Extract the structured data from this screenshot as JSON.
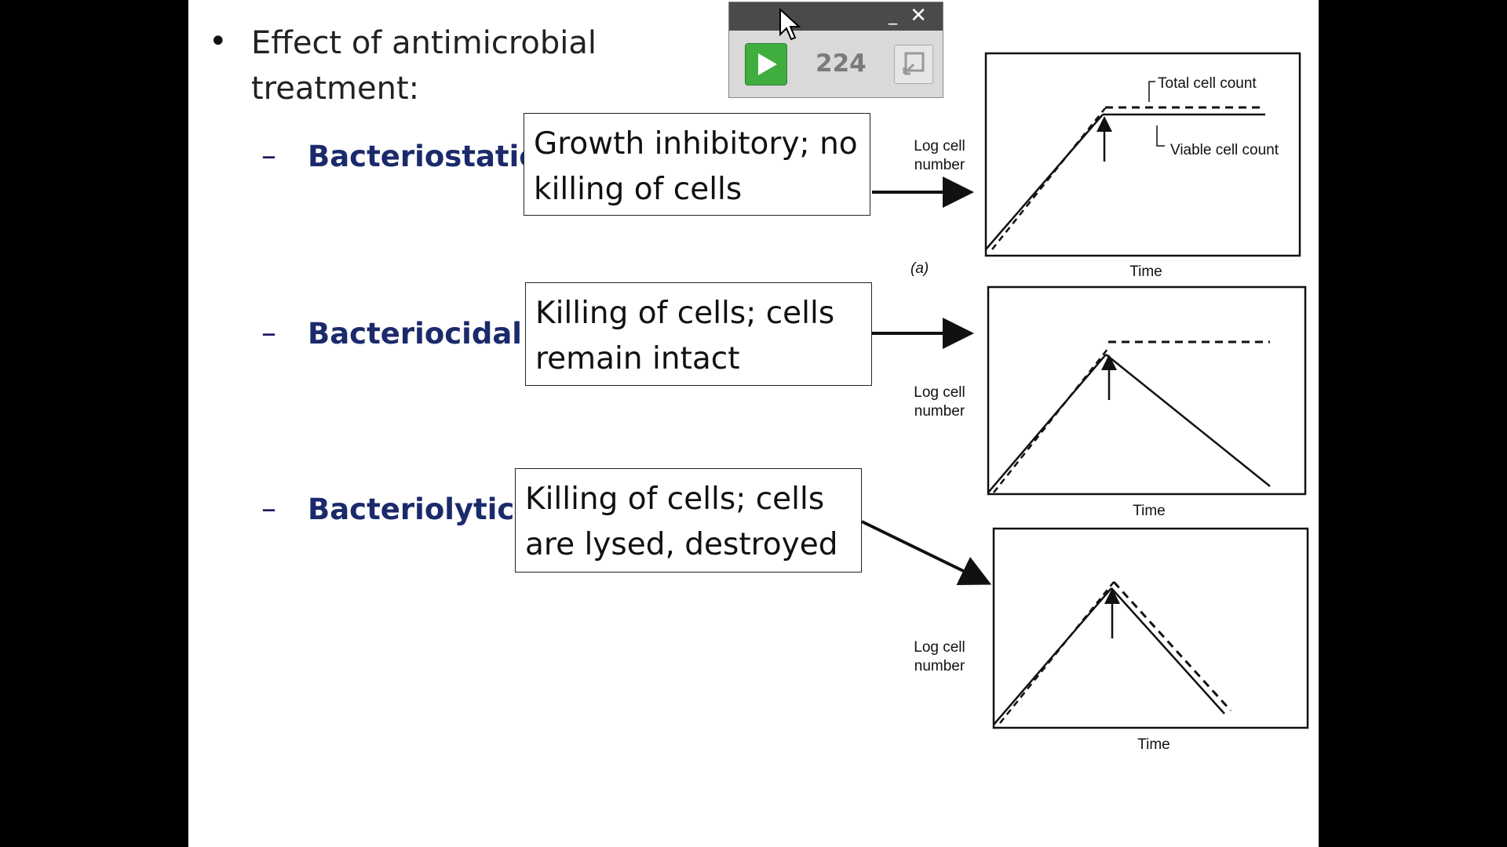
{
  "slide": {
    "bullet_symbol": "•",
    "title": "Effect of antimicrobial treatment:",
    "items": [
      {
        "dash": "–",
        "term": "Bacteriostatic",
        "description": "Growth inhibitory; no killing of cells"
      },
      {
        "dash": "–",
        "term": "Bacteriocidal",
        "description": "Killing of cells; cells remain intact"
      },
      {
        "dash": "–",
        "term": "Bacteriolytic",
        "description": "Killing of cells; cells are lysed, destroyed"
      }
    ]
  },
  "widget": {
    "count": "224",
    "play_icon": "play-icon",
    "restore_icon": "restore-icon",
    "minimize_label": "_",
    "close_label": "✕",
    "play_color": "#3fae3f"
  },
  "chart_data": [
    {
      "type": "line",
      "panel_label": "(a)",
      "xlabel": "Time",
      "ylabel": "Log cell number",
      "annotations": [
        "Total cell count",
        "Viable cell count"
      ],
      "series": [
        {
          "name": "Total cell count",
          "style": "dashed",
          "shape": "rise then plateau"
        },
        {
          "name": "Viable cell count",
          "style": "solid",
          "shape": "rise then plateau"
        }
      ],
      "arrow_marks_treatment": true
    },
    {
      "type": "line",
      "xlabel": "Time",
      "ylabel": "Log cell number",
      "series": [
        {
          "style": "dashed",
          "shape": "rise then plateau"
        },
        {
          "style": "solid",
          "shape": "rise then decline"
        }
      ],
      "arrow_marks_treatment": true
    },
    {
      "type": "line",
      "xlabel": "Time",
      "ylabel": "Log cell number",
      "series": [
        {
          "style": "dashed",
          "shape": "rise then decline"
        },
        {
          "style": "solid",
          "shape": "rise then decline"
        }
      ],
      "arrow_marks_treatment": true
    }
  ]
}
